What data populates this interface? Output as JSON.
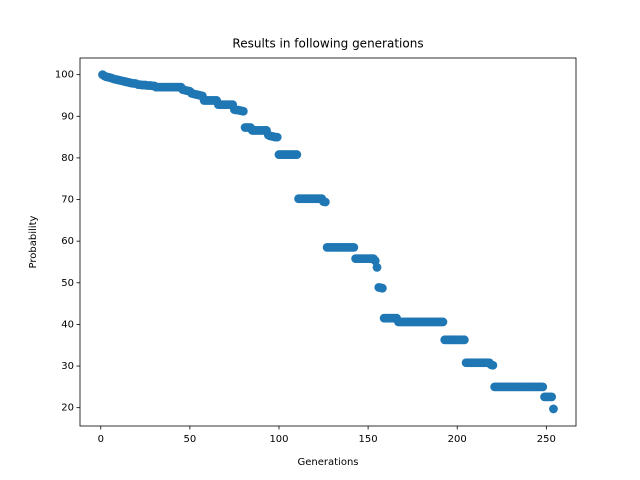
{
  "chart_data": {
    "type": "scatter",
    "title": "Results in following generations",
    "x_label": "Generations",
    "y_label": "Probability",
    "color": "#1f77b4",
    "x": [
      1,
      2,
      3,
      4,
      5,
      6,
      7,
      8,
      9,
      10,
      11,
      12,
      13,
      14,
      15,
      16,
      17,
      18,
      19,
      20,
      21,
      22,
      23,
      24,
      25,
      26,
      27,
      28,
      29,
      30,
      31,
      32,
      33,
      34,
      35,
      36,
      37,
      38,
      39,
      40,
      41,
      42,
      43,
      44,
      45,
      46,
      47,
      48,
      49,
      50,
      51,
      52,
      53,
      54,
      55,
      56,
      57,
      58,
      59,
      60,
      61,
      62,
      63,
      64,
      65,
      66,
      67,
      68,
      69,
      70,
      71,
      72,
      73,
      74,
      75,
      76,
      77,
      78,
      79,
      80,
      81,
      82,
      83,
      84,
      85,
      86,
      87,
      88,
      89,
      90,
      91,
      92,
      93,
      94,
      95,
      96,
      97,
      98,
      99,
      100,
      101,
      102,
      103,
      104,
      105,
      106,
      107,
      108,
      109,
      110,
      111,
      112,
      113,
      114,
      115,
      116,
      117,
      118,
      119,
      120,
      121,
      122,
      123,
      124,
      125,
      126,
      127,
      128,
      129,
      130,
      131,
      132,
      133,
      134,
      135,
      136,
      137,
      138,
      139,
      140,
      141,
      142,
      143,
      144,
      145,
      146,
      147,
      148,
      149,
      150,
      151,
      152,
      153,
      154,
      155,
      156,
      157,
      158,
      159,
      160,
      161,
      162,
      163,
      164,
      165,
      166,
      167,
      168,
      169,
      170,
      171,
      172,
      173,
      174,
      175,
      176,
      177,
      178,
      179,
      180,
      181,
      182,
      183,
      184,
      185,
      186,
      187,
      188,
      189,
      190,
      191,
      192,
      193,
      194,
      195,
      196,
      197,
      198,
      199,
      200,
      201,
      202,
      203,
      204,
      205,
      206,
      207,
      208,
      209,
      210,
      211,
      212,
      213,
      214,
      215,
      216,
      217,
      218,
      219,
      220,
      221,
      222,
      223,
      224,
      225,
      226,
      227,
      228,
      229,
      230,
      231,
      232,
      233,
      234,
      235,
      236,
      237,
      238,
      239,
      240,
      241,
      242,
      243,
      244,
      245,
      246,
      247,
      248,
      249,
      250,
      251,
      252,
      253,
      254
    ],
    "values": [
      100,
      99.7,
      99.5,
      99.4,
      99.3,
      99.2,
      99,
      98.9,
      98.8,
      98.7,
      98.6,
      98.5,
      98.4,
      98.3,
      98.2,
      98.1,
      98,
      97.9,
      97.9,
      97.8,
      97.6,
      97.6,
      97.5,
      97.5,
      97.5,
      97.4,
      97.4,
      97.4,
      97.3,
      97.3,
      97,
      97,
      97,
      97,
      97,
      97,
      97,
      97,
      97,
      97,
      97,
      97,
      97,
      97,
      97,
      96.4,
      96.3,
      96.2,
      96.1,
      96,
      95.5,
      95.4,
      95.3,
      95.2,
      95.1,
      95,
      94.9,
      93.8,
      93.8,
      93.8,
      93.8,
      93.8,
      93.8,
      93.8,
      93.8,
      92.8,
      92.8,
      92.8,
      92.8,
      92.8,
      92.8,
      92.8,
      92.8,
      92.8,
      91.6,
      91.5,
      91.5,
      91.4,
      91.3,
      91.2,
      87.3,
      87.3,
      87.3,
      87.3,
      86.6,
      86.6,
      86.6,
      86.6,
      86.6,
      86.6,
      86.6,
      86.6,
      86.6,
      85.5,
      85.3,
      85.2,
      85.1,
      85,
      85,
      80.8,
      80.8,
      80.8,
      80.8,
      80.8,
      80.8,
      80.8,
      80.8,
      80.8,
      80.8,
      80.8,
      70.2,
      70.2,
      70.2,
      70.2,
      70.2,
      70.2,
      70.2,
      70.2,
      70.2,
      70.2,
      70.2,
      70.2,
      70.2,
      70.2,
      69.5,
      69.4,
      58.5,
      58.5,
      58.5,
      58.5,
      58.5,
      58.5,
      58.5,
      58.5,
      58.5,
      58.5,
      58.5,
      58.5,
      58.5,
      58.5,
      58.5,
      58.5,
      55.8,
      55.8,
      55.8,
      55.8,
      55.8,
      55.8,
      55.8,
      55.8,
      55.8,
      55.8,
      55.8,
      55.3,
      53.7,
      48.9,
      48.8,
      48.7,
      41.5,
      41.5,
      41.5,
      41.5,
      41.5,
      41.5,
      41.5,
      41.5,
      40.6,
      40.6,
      40.6,
      40.6,
      40.6,
      40.6,
      40.6,
      40.6,
      40.6,
      40.6,
      40.6,
      40.6,
      40.6,
      40.6,
      40.6,
      40.6,
      40.6,
      40.6,
      40.6,
      40.6,
      40.6,
      40.6,
      40.6,
      40.6,
      40.6,
      40.6,
      36.3,
      36.3,
      36.3,
      36.3,
      36.3,
      36.3,
      36.3,
      36.3,
      36.3,
      36.3,
      36.3,
      36.3,
      30.8,
      30.8,
      30.8,
      30.8,
      30.8,
      30.8,
      30.8,
      30.8,
      30.8,
      30.8,
      30.8,
      30.8,
      30.8,
      30.8,
      30.3,
      30.2,
      25,
      25,
      25,
      25,
      25,
      25,
      25,
      25,
      25,
      25,
      25,
      25,
      25,
      25,
      25,
      25,
      25,
      25,
      25,
      25,
      25,
      25,
      25,
      25,
      25,
      25,
      25,
      25,
      22.6,
      22.6,
      22.6,
      22.6,
      22.6,
      19.7
    ],
    "xlim": [
      -11.65,
      266.65
    ],
    "xticks": [
      0,
      50,
      100,
      150,
      200,
      250
    ],
    "ylim": [
      15.6,
      104
    ],
    "yticks": [
      20,
      30,
      40,
      50,
      60,
      70,
      80,
      90,
      100
    ]
  }
}
